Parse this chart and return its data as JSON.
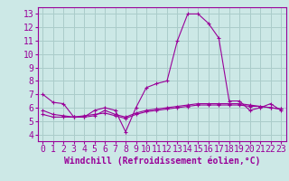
{
  "xlabel": "Windchill (Refroidissement éolien,°C)",
  "bg_color": "#cce8e6",
  "grid_color": "#aaccca",
  "line_color": "#990099",
  "xlim": [
    -0.5,
    23.5
  ],
  "ylim": [
    3.5,
    13.5
  ],
  "yticks": [
    4,
    5,
    6,
    7,
    8,
    9,
    10,
    11,
    12,
    13
  ],
  "xticks": [
    0,
    1,
    2,
    3,
    4,
    5,
    6,
    7,
    8,
    9,
    10,
    11,
    12,
    13,
    14,
    15,
    16,
    17,
    18,
    19,
    20,
    21,
    22,
    23
  ],
  "series1": [
    7.0,
    6.4,
    6.3,
    5.3,
    5.3,
    5.8,
    6.0,
    5.8,
    4.2,
    6.0,
    7.5,
    7.8,
    8.0,
    11.0,
    13.0,
    13.0,
    12.3,
    11.2,
    6.5,
    6.5,
    5.8,
    6.0,
    6.3,
    5.8
  ],
  "series2": [
    5.5,
    5.3,
    5.3,
    5.3,
    5.4,
    5.5,
    5.6,
    5.4,
    5.2,
    5.5,
    5.7,
    5.8,
    5.9,
    6.0,
    6.1,
    6.2,
    6.2,
    6.2,
    6.2,
    6.2,
    6.1,
    6.1,
    6.0,
    5.9
  ],
  "series3": [
    5.8,
    5.5,
    5.4,
    5.3,
    5.3,
    5.4,
    5.8,
    5.5,
    5.3,
    5.6,
    5.8,
    5.9,
    6.0,
    6.1,
    6.2,
    6.3,
    6.3,
    6.3,
    6.3,
    6.3,
    6.2,
    6.1,
    6.0,
    5.9
  ],
  "tick_fontsize": 7,
  "xlabel_fontsize": 7
}
